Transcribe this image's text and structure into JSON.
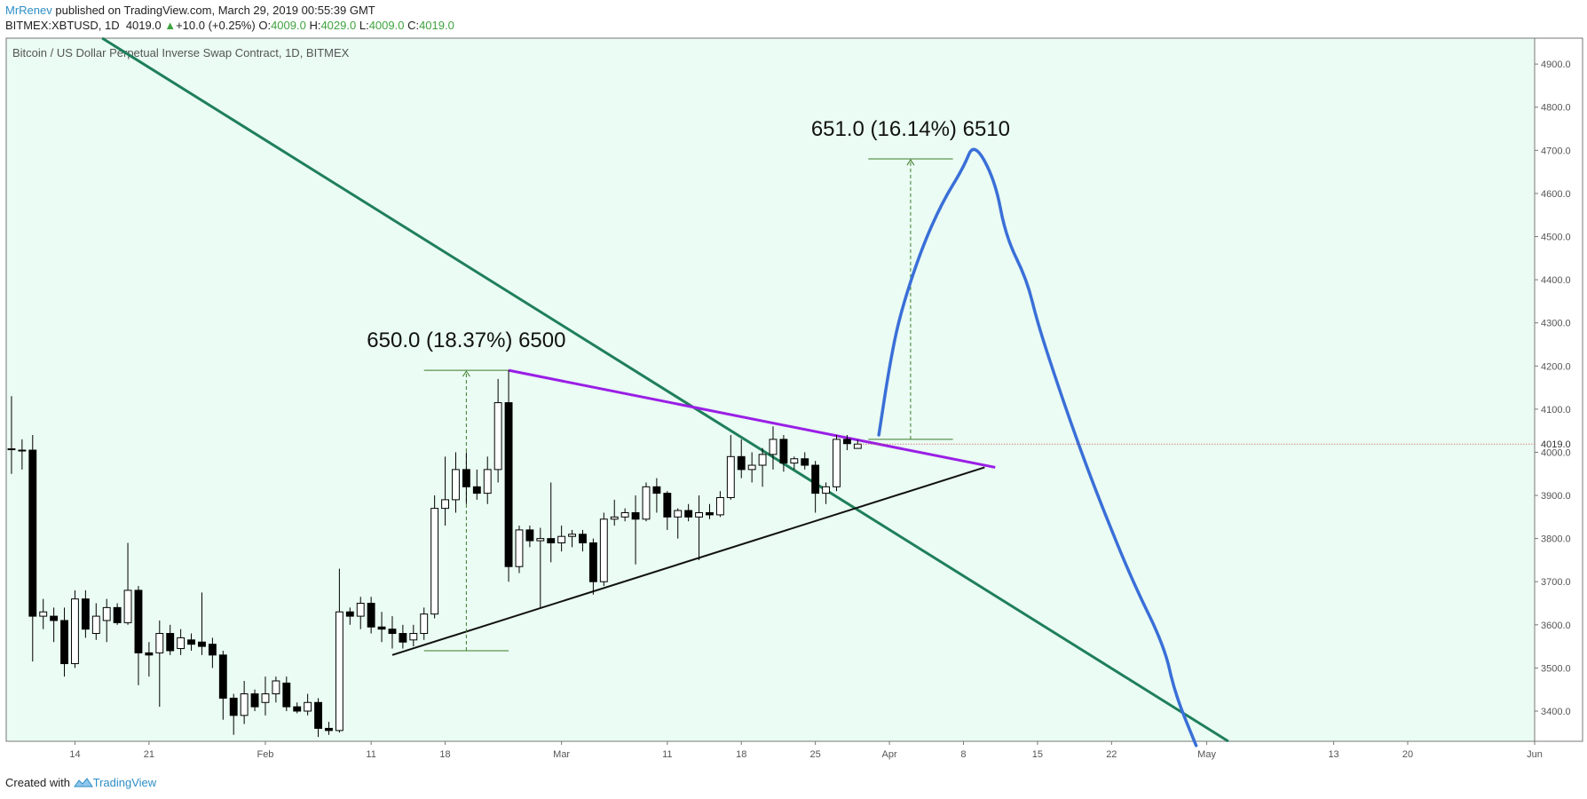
{
  "header": {
    "author": "MrRenev",
    "published_text": "published on TradingView.com, March 29, 2019 00:55:39 GMT",
    "symbol": "BITMEX:XBTUSD, 1D",
    "last": "4019.0",
    "change": "+10.0 (+0.25%)",
    "o_label": "O:",
    "o_value": "4009.0",
    "h_label": "H:",
    "h_value": "4029.0",
    "l_label": "L:",
    "l_value": "4009.0",
    "c_label": "C:",
    "c_value": "4019.0"
  },
  "footer": {
    "created_with": "Created with",
    "brand": "TradingView"
  },
  "chart_data": {
    "type": "candlestick",
    "title": "Bitcoin / US Dollar Perpetual Inverse Swap Contract, 1D, BITMEX",
    "price_label": "4019.0",
    "y_ticks": [
      "3400.0",
      "3500.0",
      "3600.0",
      "3700.0",
      "3800.0",
      "3900.0",
      "4000.0",
      "4100.0",
      "4200.0",
      "4300.0",
      "4400.0",
      "4500.0",
      "4600.0",
      "4700.0",
      "4800.0",
      "4900.0"
    ],
    "ylim": [
      3330,
      4960
    ],
    "x_range": [
      "2019-01-08",
      "2019-06-01"
    ],
    "x_ticks": [
      {
        "date": "2019-01-14",
        "label": "14"
      },
      {
        "date": "2019-01-21",
        "label": "21"
      },
      {
        "date": "2019-02-01",
        "label": "Feb"
      },
      {
        "date": "2019-02-11",
        "label": "11"
      },
      {
        "date": "2019-02-18",
        "label": "18"
      },
      {
        "date": "2019-03-01",
        "label": "Mar"
      },
      {
        "date": "2019-03-11",
        "label": "11"
      },
      {
        "date": "2019-03-18",
        "label": "18"
      },
      {
        "date": "2019-03-25",
        "label": "25"
      },
      {
        "date": "2019-04-01",
        "label": "Apr"
      },
      {
        "date": "2019-04-08",
        "label": "8"
      },
      {
        "date": "2019-04-15",
        "label": "15"
      },
      {
        "date": "2019-04-22",
        "label": "22"
      },
      {
        "date": "2019-05-01",
        "label": "May"
      },
      {
        "date": "2019-05-13",
        "label": "13"
      },
      {
        "date": "2019-05-20",
        "label": "20"
      },
      {
        "date": "2019-06-01",
        "label": "Jun"
      }
    ],
    "candles": [
      {
        "date": "2019-01-08",
        "o": 4008,
        "h": 4130,
        "l": 3950,
        "c": 4008
      },
      {
        "date": "2019-01-09",
        "o": 4005,
        "h": 4030,
        "l": 3960,
        "c": 4005
      },
      {
        "date": "2019-01-10",
        "o": 4005,
        "h": 4040,
        "l": 3515,
        "c": 3620
      },
      {
        "date": "2019-01-11",
        "o": 3620,
        "h": 3660,
        "l": 3590,
        "c": 3630
      },
      {
        "date": "2019-01-12",
        "o": 3620,
        "h": 3640,
        "l": 3560,
        "c": 3610
      },
      {
        "date": "2019-01-13",
        "o": 3610,
        "h": 3640,
        "l": 3480,
        "c": 3510
      },
      {
        "date": "2019-01-14",
        "o": 3510,
        "h": 3680,
        "l": 3500,
        "c": 3660
      },
      {
        "date": "2019-01-15",
        "o": 3660,
        "h": 3680,
        "l": 3570,
        "c": 3590
      },
      {
        "date": "2019-01-16",
        "o": 3580,
        "h": 3650,
        "l": 3565,
        "c": 3620
      },
      {
        "date": "2019-01-17",
        "o": 3610,
        "h": 3660,
        "l": 3560,
        "c": 3640
      },
      {
        "date": "2019-01-18",
        "o": 3640,
        "h": 3650,
        "l": 3600,
        "c": 3605
      },
      {
        "date": "2019-01-19",
        "o": 3605,
        "h": 3790,
        "l": 3600,
        "c": 3680
      },
      {
        "date": "2019-01-20",
        "o": 3680,
        "h": 3690,
        "l": 3460,
        "c": 3535
      },
      {
        "date": "2019-01-21",
        "o": 3535,
        "h": 3560,
        "l": 3480,
        "c": 3530
      },
      {
        "date": "2019-01-22",
        "o": 3535,
        "h": 3610,
        "l": 3410,
        "c": 3580
      },
      {
        "date": "2019-01-23",
        "o": 3580,
        "h": 3600,
        "l": 3530,
        "c": 3540
      },
      {
        "date": "2019-01-24",
        "o": 3545,
        "h": 3590,
        "l": 3530,
        "c": 3570
      },
      {
        "date": "2019-01-25",
        "o": 3565,
        "h": 3580,
        "l": 3540,
        "c": 3555
      },
      {
        "date": "2019-01-26",
        "o": 3560,
        "h": 3675,
        "l": 3530,
        "c": 3550
      },
      {
        "date": "2019-01-27",
        "o": 3555,
        "h": 3570,
        "l": 3500,
        "c": 3530
      },
      {
        "date": "2019-01-28",
        "o": 3530,
        "h": 3540,
        "l": 3380,
        "c": 3430
      },
      {
        "date": "2019-01-29",
        "o": 3430,
        "h": 3440,
        "l": 3345,
        "c": 3390
      },
      {
        "date": "2019-01-30",
        "o": 3390,
        "h": 3470,
        "l": 3370,
        "c": 3440
      },
      {
        "date": "2019-01-31",
        "o": 3440,
        "h": 3450,
        "l": 3400,
        "c": 3410
      },
      {
        "date": "2019-02-01",
        "o": 3420,
        "h": 3480,
        "l": 3390,
        "c": 3440
      },
      {
        "date": "2019-02-02",
        "o": 3440,
        "h": 3480,
        "l": 3420,
        "c": 3470
      },
      {
        "date": "2019-02-03",
        "o": 3465,
        "h": 3480,
        "l": 3400,
        "c": 3410
      },
      {
        "date": "2019-02-04",
        "o": 3410,
        "h": 3420,
        "l": 3395,
        "c": 3400
      },
      {
        "date": "2019-02-05",
        "o": 3400,
        "h": 3440,
        "l": 3390,
        "c": 3420
      },
      {
        "date": "2019-02-06",
        "o": 3420,
        "h": 3430,
        "l": 3340,
        "c": 3360
      },
      {
        "date": "2019-02-07",
        "o": 3360,
        "h": 3375,
        "l": 3345,
        "c": 3355
      },
      {
        "date": "2019-02-08",
        "o": 3355,
        "h": 3730,
        "l": 3350,
        "c": 3630
      },
      {
        "date": "2019-02-09",
        "o": 3630,
        "h": 3640,
        "l": 3600,
        "c": 3620
      },
      {
        "date": "2019-02-10",
        "o": 3620,
        "h": 3665,
        "l": 3590,
        "c": 3650
      },
      {
        "date": "2019-02-11",
        "o": 3650,
        "h": 3665,
        "l": 3580,
        "c": 3595
      },
      {
        "date": "2019-02-12",
        "o": 3595,
        "h": 3630,
        "l": 3560,
        "c": 3590
      },
      {
        "date": "2019-02-13",
        "o": 3590,
        "h": 3620,
        "l": 3545,
        "c": 3580
      },
      {
        "date": "2019-02-14",
        "o": 3580,
        "h": 3600,
        "l": 3545,
        "c": 3560
      },
      {
        "date": "2019-02-15",
        "o": 3565,
        "h": 3600,
        "l": 3550,
        "c": 3580
      },
      {
        "date": "2019-02-16",
        "o": 3580,
        "h": 3640,
        "l": 3565,
        "c": 3625
      },
      {
        "date": "2019-02-17",
        "o": 3625,
        "h": 3900,
        "l": 3615,
        "c": 3870
      },
      {
        "date": "2019-02-18",
        "o": 3870,
        "h": 3990,
        "l": 3830,
        "c": 3890
      },
      {
        "date": "2019-02-19",
        "o": 3890,
        "h": 4000,
        "l": 3860,
        "c": 3960
      },
      {
        "date": "2019-02-20",
        "o": 3960,
        "h": 4000,
        "l": 3880,
        "c": 3920
      },
      {
        "date": "2019-02-21",
        "o": 3920,
        "h": 3960,
        "l": 3890,
        "c": 3905
      },
      {
        "date": "2019-02-22",
        "o": 3905,
        "h": 3990,
        "l": 3880,
        "c": 3960
      },
      {
        "date": "2019-02-23",
        "o": 3960,
        "h": 4170,
        "l": 3930,
        "c": 4115
      },
      {
        "date": "2019-02-24",
        "o": 4115,
        "h": 4190,
        "l": 3700,
        "c": 3735
      },
      {
        "date": "2019-02-25",
        "o": 3735,
        "h": 3830,
        "l": 3720,
        "c": 3820
      },
      {
        "date": "2019-02-26",
        "o": 3820,
        "h": 3830,
        "l": 3780,
        "c": 3795
      },
      {
        "date": "2019-02-27",
        "o": 3795,
        "h": 3825,
        "l": 3640,
        "c": 3800
      },
      {
        "date": "2019-02-28",
        "o": 3800,
        "h": 3930,
        "l": 3745,
        "c": 3790
      },
      {
        "date": "2019-03-01",
        "o": 3790,
        "h": 3830,
        "l": 3770,
        "c": 3805
      },
      {
        "date": "2019-03-02",
        "o": 3805,
        "h": 3820,
        "l": 3780,
        "c": 3810
      },
      {
        "date": "2019-03-03",
        "o": 3810,
        "h": 3820,
        "l": 3770,
        "c": 3790
      },
      {
        "date": "2019-03-04",
        "o": 3790,
        "h": 3800,
        "l": 3670,
        "c": 3700
      },
      {
        "date": "2019-03-05",
        "o": 3700,
        "h": 3860,
        "l": 3690,
        "c": 3845
      },
      {
        "date": "2019-03-06",
        "o": 3845,
        "h": 3890,
        "l": 3830,
        "c": 3850
      },
      {
        "date": "2019-03-07",
        "o": 3850,
        "h": 3870,
        "l": 3840,
        "c": 3860
      },
      {
        "date": "2019-03-08",
        "o": 3860,
        "h": 3900,
        "l": 3740,
        "c": 3845
      },
      {
        "date": "2019-03-09",
        "o": 3845,
        "h": 3930,
        "l": 3840,
        "c": 3920
      },
      {
        "date": "2019-03-10",
        "o": 3920,
        "h": 3940,
        "l": 3860,
        "c": 3905
      },
      {
        "date": "2019-03-11",
        "o": 3905,
        "h": 3910,
        "l": 3820,
        "c": 3850
      },
      {
        "date": "2019-03-12",
        "o": 3850,
        "h": 3870,
        "l": 3800,
        "c": 3865
      },
      {
        "date": "2019-03-13",
        "o": 3865,
        "h": 3880,
        "l": 3840,
        "c": 3850
      },
      {
        "date": "2019-03-14",
        "o": 3850,
        "h": 3900,
        "l": 3750,
        "c": 3860
      },
      {
        "date": "2019-03-15",
        "o": 3860,
        "h": 3880,
        "l": 3845,
        "c": 3855
      },
      {
        "date": "2019-03-16",
        "o": 3855,
        "h": 3910,
        "l": 3850,
        "c": 3895
      },
      {
        "date": "2019-03-17",
        "o": 3895,
        "h": 4040,
        "l": 3890,
        "c": 3990
      },
      {
        "date": "2019-03-18",
        "o": 3990,
        "h": 4030,
        "l": 3940,
        "c": 3960
      },
      {
        "date": "2019-03-19",
        "o": 3960,
        "h": 4000,
        "l": 3930,
        "c": 3970
      },
      {
        "date": "2019-03-20",
        "o": 3970,
        "h": 4010,
        "l": 3920,
        "c": 3995
      },
      {
        "date": "2019-03-21",
        "o": 3995,
        "h": 4060,
        "l": 3960,
        "c": 4030
      },
      {
        "date": "2019-03-22",
        "o": 4030,
        "h": 4040,
        "l": 3955,
        "c": 3975
      },
      {
        "date": "2019-03-23",
        "o": 3975,
        "h": 3990,
        "l": 3960,
        "c": 3985
      },
      {
        "date": "2019-03-24",
        "o": 3985,
        "h": 4000,
        "l": 3960,
        "c": 3970
      },
      {
        "date": "2019-03-25",
        "o": 3970,
        "h": 3980,
        "l": 3860,
        "c": 3905
      },
      {
        "date": "2019-03-26",
        "o": 3905,
        "h": 3930,
        "l": 3880,
        "c": 3920
      },
      {
        "date": "2019-03-27",
        "o": 3920,
        "h": 4040,
        "l": 3910,
        "c": 4030
      },
      {
        "date": "2019-03-28",
        "o": 4030,
        "h": 4040,
        "l": 4005,
        "c": 4020
      },
      {
        "date": "2019-03-29",
        "o": 4009,
        "h": 4029,
        "l": 4009,
        "c": 4019
      }
    ],
    "trendlines": [
      {
        "name": "descending",
        "color": "#1f7f5a",
        "points": [
          {
            "date": "2019-01-12",
            "value": 5030
          },
          {
            "date": "2019-05-05",
            "value": 3300
          }
        ]
      },
      {
        "name": "triangle-upper",
        "color": "#9a1ee6",
        "points": [
          {
            "date": "2019-02-24",
            "value": 4190
          },
          {
            "date": "2019-04-11",
            "value": 3965
          }
        ]
      },
      {
        "name": "triangle-lower",
        "color": "#111111",
        "points": [
          {
            "date": "2019-02-13",
            "value": 3530
          },
          {
            "date": "2019-04-10",
            "value": 3965
          }
        ]
      }
    ],
    "measurements": [
      {
        "label": "650.0 (18.37%) 6500",
        "color": "#3d7a2a",
        "date_start": "2019-02-16",
        "date_end": "2019-02-24",
        "arrow_date": "2019-02-20",
        "from": 3540,
        "to": 4190
      },
      {
        "label": "651.0 (16.14%) 6510",
        "color": "#3d7a2a",
        "date_start": "2019-03-30",
        "date_end": "2019-04-07",
        "arrow_date": "2019-04-03",
        "from": 4030,
        "to": 4680
      }
    ],
    "projection": {
      "color": "#3a6fd8",
      "points": [
        {
          "date": "2019-03-31",
          "value": 4040
        },
        {
          "date": "2019-04-01",
          "value": 4200
        },
        {
          "date": "2019-04-02",
          "value": 4320
        },
        {
          "date": "2019-04-04",
          "value": 4470
        },
        {
          "date": "2019-04-06",
          "value": 4580
        },
        {
          "date": "2019-04-08",
          "value": 4660
        },
        {
          "date": "2019-04-09",
          "value": 4720
        },
        {
          "date": "2019-04-11",
          "value": 4630
        },
        {
          "date": "2019-04-12",
          "value": 4500
        },
        {
          "date": "2019-04-14",
          "value": 4400
        },
        {
          "date": "2019-04-15",
          "value": 4300
        },
        {
          "date": "2019-04-17",
          "value": 4150
        },
        {
          "date": "2019-04-19",
          "value": 4010
        },
        {
          "date": "2019-04-21",
          "value": 3880
        },
        {
          "date": "2019-04-24",
          "value": 3700
        },
        {
          "date": "2019-04-27",
          "value": 3550
        },
        {
          "date": "2019-04-28",
          "value": 3440
        },
        {
          "date": "2019-04-30",
          "value": 3320
        }
      ]
    },
    "colors": {
      "background": "#eafcf3",
      "up_body": "#ffffff",
      "down_body": "#000000",
      "wick": "#000000",
      "axis_text": "#555555"
    }
  }
}
